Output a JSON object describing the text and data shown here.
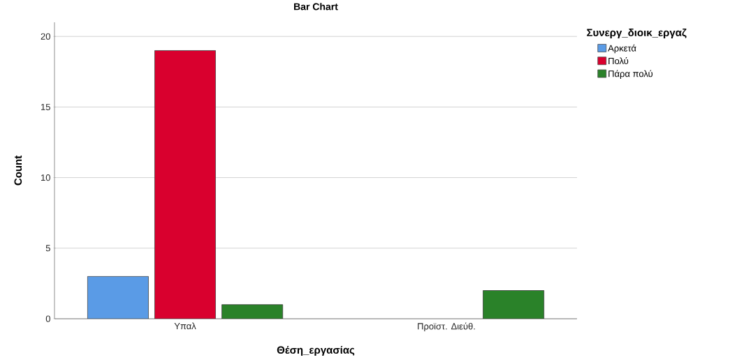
{
  "chart_data": {
    "type": "bar",
    "title": "Bar Chart",
    "xlabel": "Θέση_εργασίας",
    "ylabel": "Count",
    "legend_title": "Συνεργ_διοικ_εργαζ",
    "categories": [
      "Υπαλ",
      "Προϊστ. Διεύθ."
    ],
    "series": [
      {
        "name": "Αρκετά",
        "color": "#5a9be6",
        "values": [
          3,
          null
        ]
      },
      {
        "name": "Πολύ",
        "color": "#d9002e",
        "values": [
          19,
          null
        ]
      },
      {
        "name": "Πάρα πολύ",
        "color": "#2a8229",
        "values": [
          1,
          2
        ]
      }
    ],
    "ylim": [
      0,
      21
    ],
    "yticks": [
      0,
      5,
      10,
      15,
      20
    ],
    "grid": "y",
    "legend": "top right"
  }
}
